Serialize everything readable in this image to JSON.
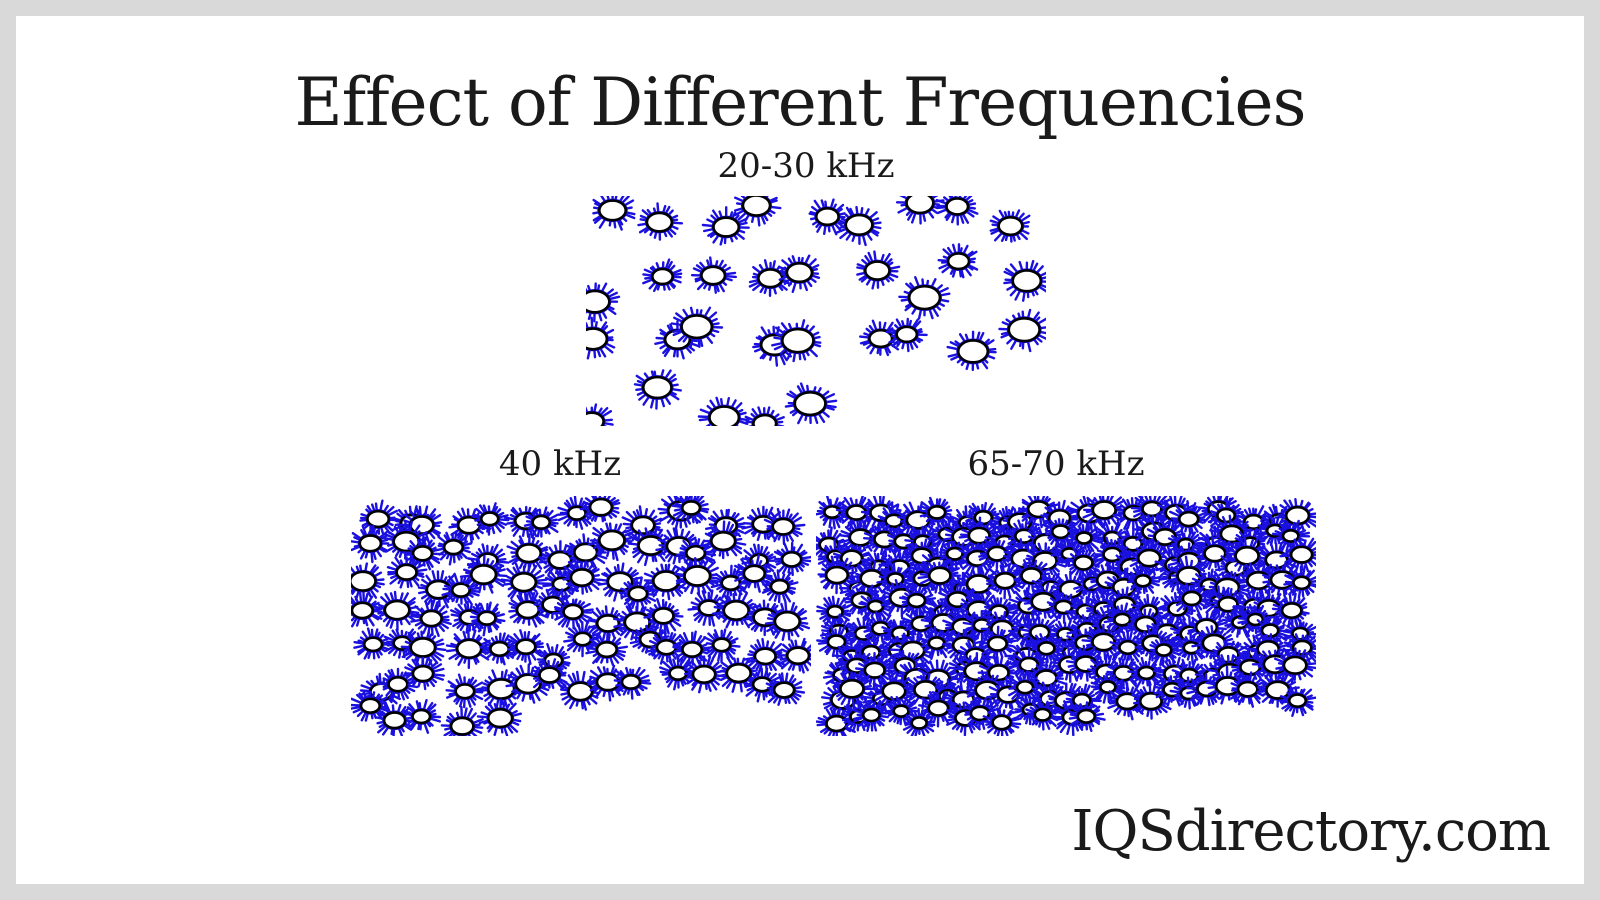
{
  "title": "Effect of Different Frequencies",
  "panels": [
    {
      "label": "20-30 kHz",
      "bubble_count": 32,
      "density": "low"
    },
    {
      "label": "40 kHz",
      "bubble_count": 95,
      "density": "medium"
    },
    {
      "label": "65-70 kHz",
      "bubble_count": 220,
      "density": "high"
    }
  ],
  "brand": "IQSdirectory.com",
  "colors": {
    "bubble_spikes": "#1a10e0",
    "bubble_outline": "#000000",
    "bubble_core": "#ffffff",
    "background": "#ffffff",
    "frame": "#d9d9d9"
  }
}
